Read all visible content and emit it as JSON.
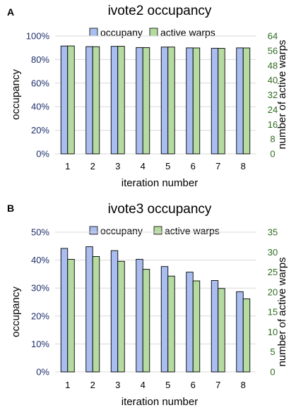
{
  "colors": {
    "occupancy": "#a9bdf0",
    "active_warps": "#b5dba0",
    "bar_edge": "#000000",
    "left_tick": "#1f2f6b",
    "right_tick": "#2e6b1f",
    "grid": "#d9d9d9"
  },
  "chart_data": [
    {
      "type": "bar",
      "panel_label": "A",
      "title": "ivote2 occupancy",
      "categories": [
        "1",
        "2",
        "3",
        "4",
        "5",
        "6",
        "7",
        "8"
      ],
      "xlabel": "iteration number",
      "ylabel": "occupancy",
      "y2label": "number of active warps",
      "ylim": [
        0,
        100
      ],
      "y2lim": [
        0,
        64
      ],
      "yticks": [
        "0%",
        "20%",
        "40%",
        "60%",
        "80%",
        "100%"
      ],
      "y2ticks": [
        "0",
        "8",
        "16",
        "24",
        "32",
        "40",
        "48",
        "56",
        "64"
      ],
      "grid": true,
      "legend_position": "top",
      "series": [
        {
          "name": "occupany",
          "axis": "left",
          "values": [
            91.5,
            91.0,
            91.2,
            90.2,
            90.6,
            89.9,
            89.6,
            89.9
          ]
        },
        {
          "name": "active warps",
          "axis": "right",
          "values": [
            58.6,
            58.2,
            58.4,
            57.7,
            58.0,
            57.5,
            57.3,
            57.5
          ]
        }
      ]
    },
    {
      "type": "bar",
      "panel_label": "B",
      "title": "ivote3 occupancy",
      "categories": [
        "1",
        "2",
        "3",
        "4",
        "5",
        "6",
        "7",
        "8"
      ],
      "xlabel": "iteration number",
      "ylabel": "occupancy",
      "y2label": "number of active warps",
      "ylim": [
        0,
        50
      ],
      "y2lim": [
        0,
        35
      ],
      "yticks": [
        "0%",
        "10%",
        "20%",
        "30%",
        "40%",
        "50%"
      ],
      "y2ticks": [
        "0",
        "5",
        "10",
        "15",
        "20",
        "25",
        "30",
        "35"
      ],
      "grid": true,
      "legend_position": "top",
      "series": [
        {
          "name": "occupany",
          "axis": "left",
          "values": [
            44.2,
            44.8,
            43.4,
            40.3,
            37.7,
            35.7,
            32.7,
            28.7
          ]
        },
        {
          "name": "active warps",
          "axis": "right",
          "values": [
            28.2,
            28.9,
            27.7,
            25.7,
            24.0,
            22.8,
            20.9,
            18.3
          ]
        }
      ]
    }
  ]
}
